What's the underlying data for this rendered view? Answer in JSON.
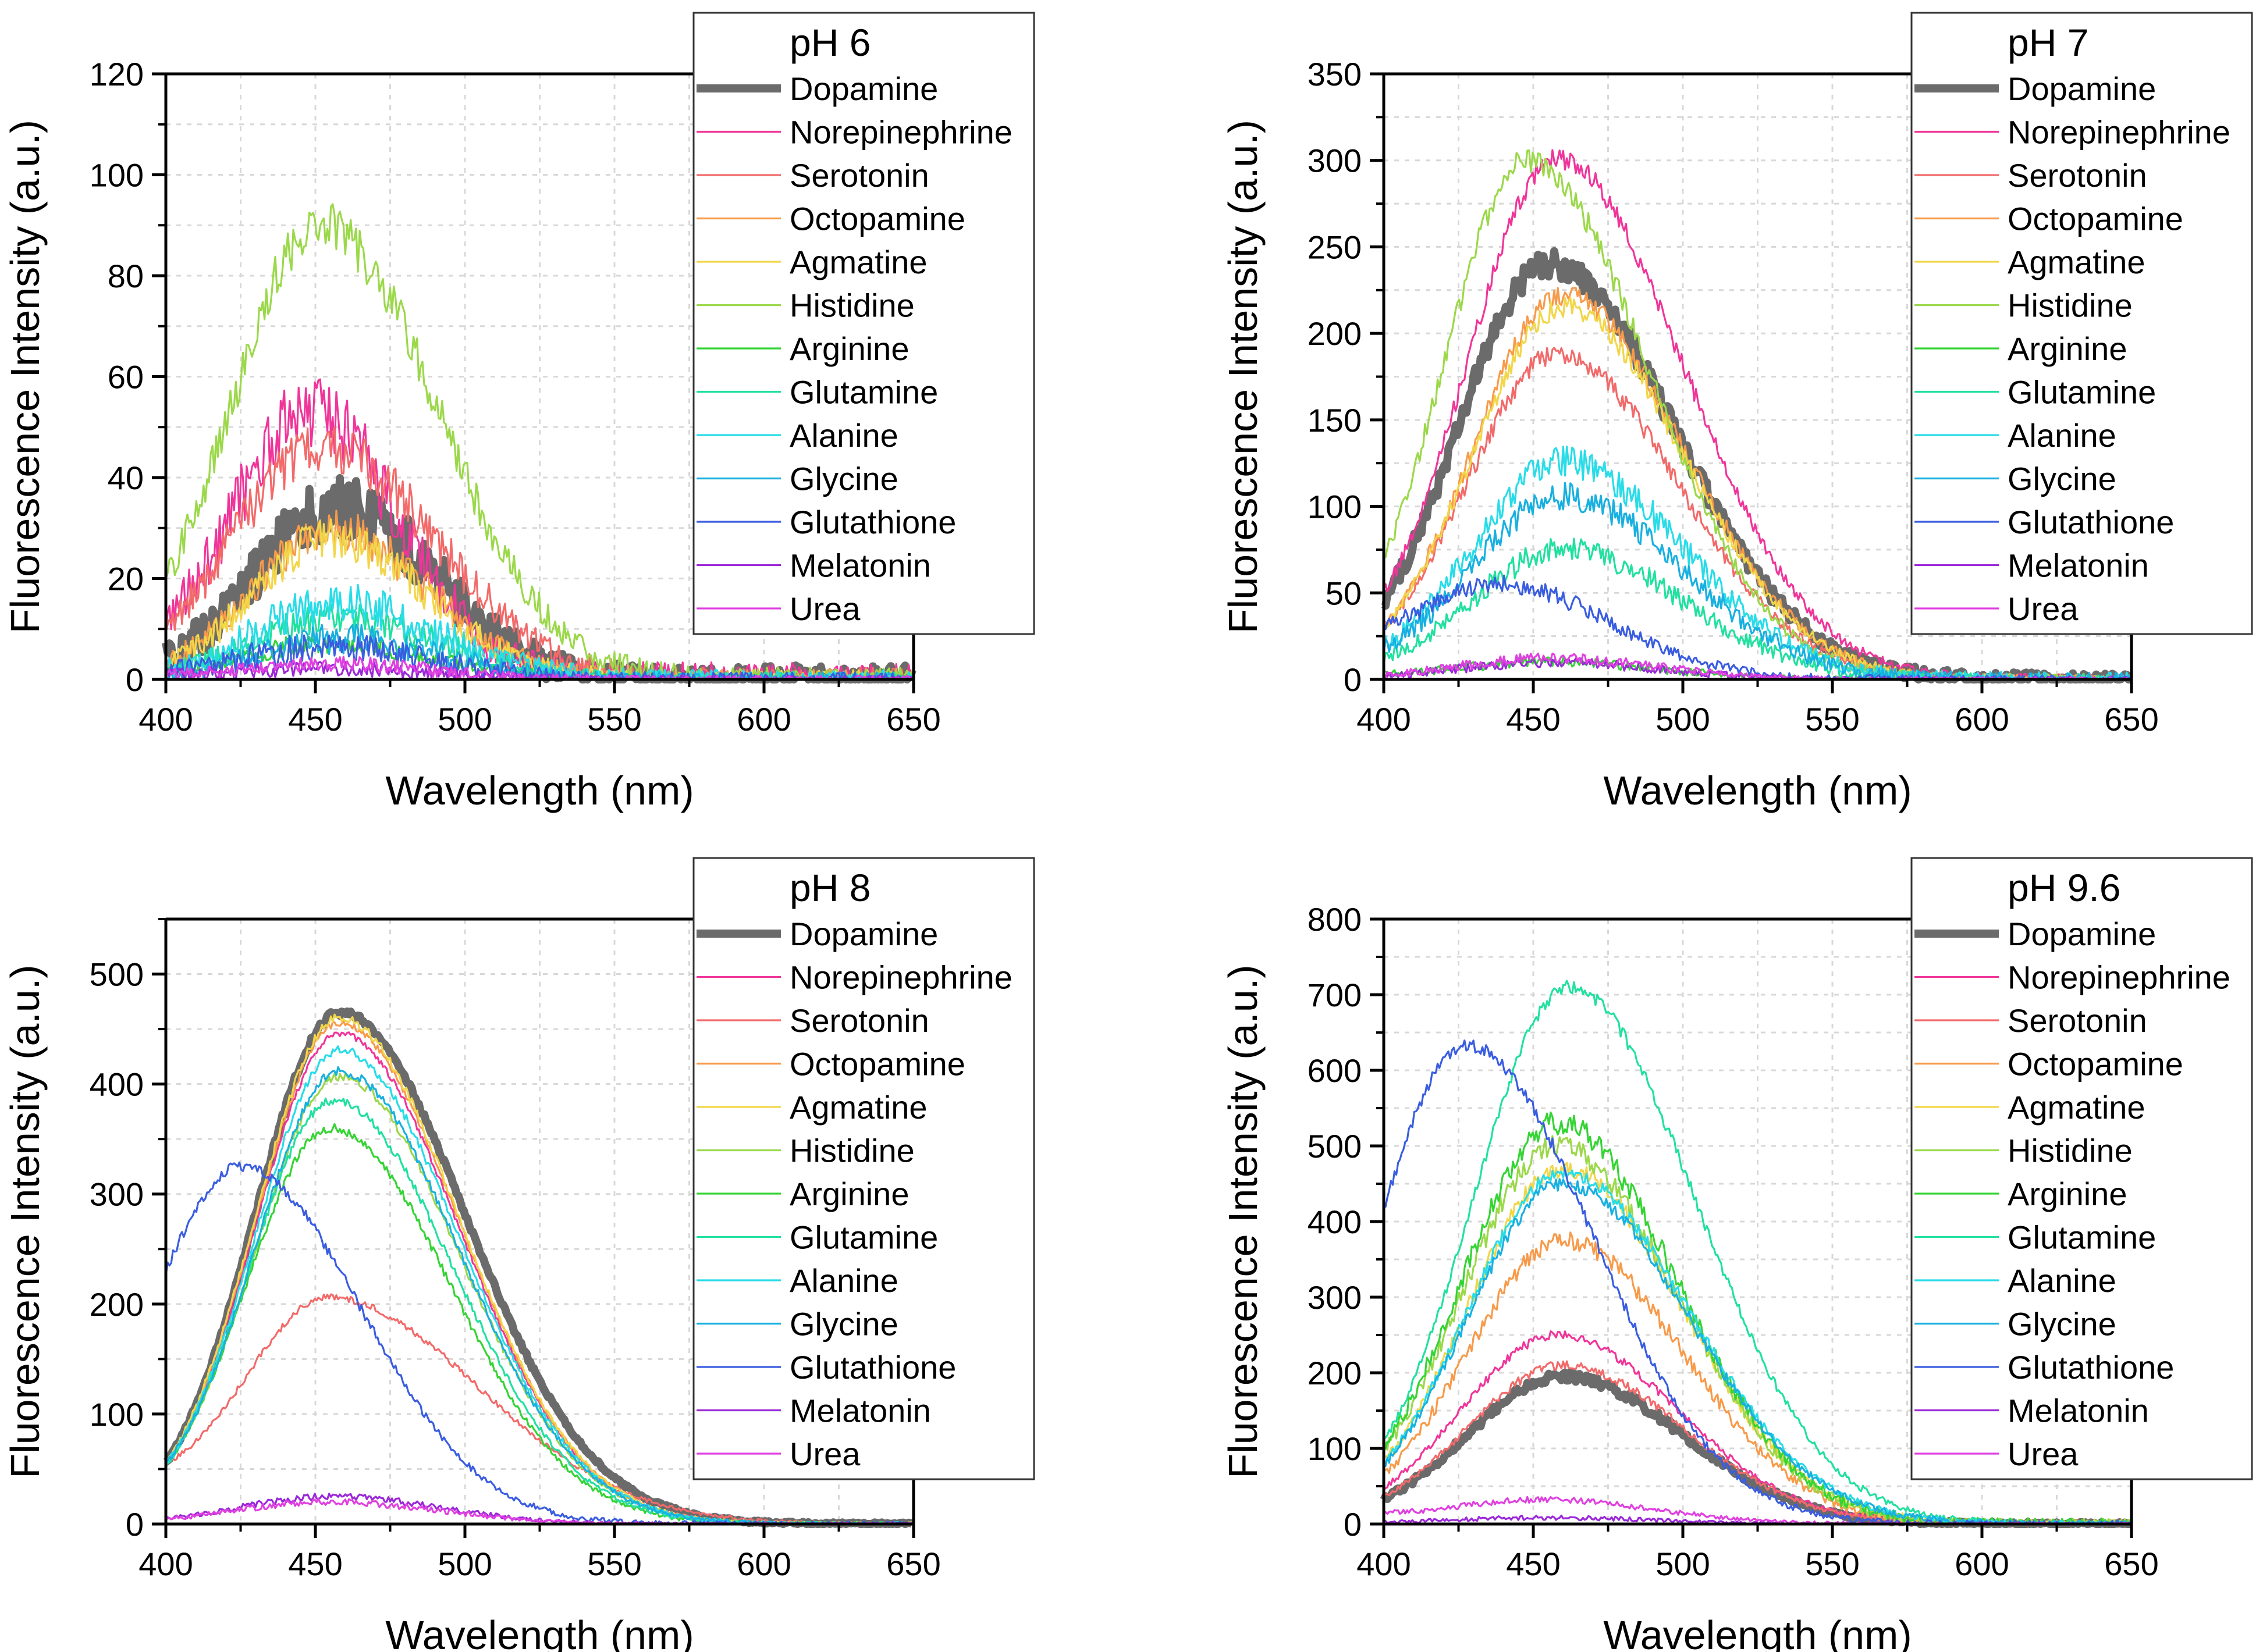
{
  "figure": {
    "xlabel": "Wavelength (nm)",
    "ylabel": "Fluorescence Intensity (a.u.)"
  },
  "legend_order": [
    "Dopamine",
    "Norepinephrine",
    "Serotonin",
    "Octopamine",
    "Agmatine",
    "Histidine",
    "Arginine",
    "Glutamine",
    "Alanine",
    "Glycine",
    "Glutathione",
    "Melatonin",
    "Urea"
  ],
  "colors": {
    "Dopamine": "#6b6b6b",
    "Norepinephrine": "#f0359a",
    "Serotonin": "#f26a6a",
    "Octopamine": "#f79a4a",
    "Agmatine": "#f2d64a",
    "Histidine": "#9bd84a",
    "Arginine": "#35d435",
    "Glutamine": "#22e0a0",
    "Alanine": "#28dce8",
    "Glycine": "#18b0e0",
    "Glutathione": "#3a5de0",
    "Melatonin": "#9a28d8",
    "Urea": "#e040e0"
  },
  "chart_data": [
    {
      "type": "line",
      "title": "pH 6",
      "xlabel": "Wavelength (nm)",
      "ylabel": "Fluorescence Intensity (a.u.)",
      "xlim": [
        400,
        650
      ],
      "ylim": [
        0,
        120
      ],
      "xticks": [
        400,
        450,
        500,
        550,
        600,
        650
      ],
      "yticks": [
        0,
        20,
        40,
        60,
        80,
        100,
        120
      ],
      "legend_position": "top-right",
      "grid": true,
      "series": [
        {
          "name": "Dopamine",
          "peak_x": 458,
          "peak_y": 34,
          "width_left": 28,
          "width_right": 32,
          "baseline_start": 4,
          "noise": 6
        },
        {
          "name": "Norepinephrine",
          "peak_x": 448,
          "peak_y": 52,
          "width_left": 25,
          "width_right": 30,
          "baseline_start": 12,
          "noise": 7
        },
        {
          "name": "Serotonin",
          "peak_x": 452,
          "peak_y": 46,
          "width_left": 30,
          "width_right": 38,
          "baseline_start": 8,
          "noise": 5
        },
        {
          "name": "Octopamine",
          "peak_x": 455,
          "peak_y": 30,
          "width_left": 26,
          "width_right": 32,
          "baseline_start": 3,
          "noise": 4
        },
        {
          "name": "Agmatine",
          "peak_x": 455,
          "peak_y": 28,
          "width_left": 26,
          "width_right": 32,
          "baseline_start": 3,
          "noise": 4
        },
        {
          "name": "Histidine",
          "peak_x": 452,
          "peak_y": 90,
          "width_left": 30,
          "width_right": 38,
          "baseline_start": 18,
          "noise": 5
        },
        {
          "name": "Arginine",
          "peak_x": 455,
          "peak_y": 7,
          "width_left": 28,
          "width_right": 34,
          "baseline_start": 2,
          "noise": 2
        },
        {
          "name": "Glutamine",
          "peak_x": 458,
          "peak_y": 12,
          "width_left": 28,
          "width_right": 34,
          "baseline_start": 2,
          "noise": 3
        },
        {
          "name": "Alanine",
          "peak_x": 458,
          "peak_y": 15,
          "width_left": 28,
          "width_right": 34,
          "baseline_start": 2,
          "noise": 4
        },
        {
          "name": "Glycine",
          "peak_x": 458,
          "peak_y": 8,
          "width_left": 28,
          "width_right": 34,
          "baseline_start": 1,
          "noise": 3
        },
        {
          "name": "Glutathione",
          "peak_x": 455,
          "peak_y": 6,
          "width_left": 28,
          "width_right": 34,
          "baseline_start": 2,
          "noise": 3
        },
        {
          "name": "Melatonin",
          "peak_x": 455,
          "peak_y": 2,
          "width_left": 30,
          "width_right": 34,
          "baseline_start": 1,
          "noise": 1.5
        },
        {
          "name": "Urea",
          "peak_x": 455,
          "peak_y": 3,
          "width_left": 30,
          "width_right": 34,
          "baseline_start": 1,
          "noise": 1.5
        }
      ]
    },
    {
      "type": "line",
      "title": "pH 7",
      "xlabel": "Wavelength (nm)",
      "ylabel": "Fluorescence Intensity (a.u.)",
      "xlim": [
        400,
        650
      ],
      "ylim": [
        0,
        350
      ],
      "xticks": [
        400,
        450,
        500,
        550,
        600,
        650
      ],
      "yticks": [
        0,
        50,
        100,
        150,
        200,
        250,
        300,
        350
      ],
      "legend_position": "top-right",
      "grid": true,
      "series": [
        {
          "name": "Dopamine",
          "peak_x": 455,
          "peak_y": 240,
          "width_left": 30,
          "width_right": 42,
          "baseline_start": 45,
          "noise": 8
        },
        {
          "name": "Norepinephrine",
          "peak_x": 458,
          "peak_y": 300,
          "width_left": 30,
          "width_right": 42,
          "baseline_start": 50,
          "noise": 6
        },
        {
          "name": "Serotonin",
          "peak_x": 458,
          "peak_y": 188,
          "width_left": 30,
          "width_right": 40,
          "baseline_start": 30,
          "noise": 6
        },
        {
          "name": "Octopamine",
          "peak_x": 460,
          "peak_y": 222,
          "width_left": 30,
          "width_right": 40,
          "baseline_start": 30,
          "noise": 6
        },
        {
          "name": "Agmatine",
          "peak_x": 460,
          "peak_y": 215,
          "width_left": 30,
          "width_right": 40,
          "baseline_start": 30,
          "noise": 6
        },
        {
          "name": "Histidine",
          "peak_x": 448,
          "peak_y": 300,
          "width_left": 28,
          "width_right": 40,
          "baseline_start": 60,
          "noise": 7
        },
        {
          "name": "Arginine",
          "peak_x": 455,
          "peak_y": 10,
          "width_left": 30,
          "width_right": 36,
          "baseline_start": 3,
          "noise": 3
        },
        {
          "name": "Glutamine",
          "peak_x": 460,
          "peak_y": 75,
          "width_left": 30,
          "width_right": 40,
          "baseline_start": 12,
          "noise": 7
        },
        {
          "name": "Alanine",
          "peak_x": 460,
          "peak_y": 125,
          "width_left": 30,
          "width_right": 40,
          "baseline_start": 20,
          "noise": 9
        },
        {
          "name": "Glycine",
          "peak_x": 460,
          "peak_y": 105,
          "width_left": 30,
          "width_right": 40,
          "baseline_start": 18,
          "noise": 8
        },
        {
          "name": "Glutathione",
          "peak_x": 440,
          "peak_y": 52,
          "width_left": 30,
          "width_right": 36,
          "baseline_start": 30,
          "noise": 5
        },
        {
          "name": "Melatonin",
          "peak_x": 455,
          "peak_y": 10,
          "width_left": 30,
          "width_right": 36,
          "baseline_start": 2,
          "noise": 3
        },
        {
          "name": "Urea",
          "peak_x": 455,
          "peak_y": 12,
          "width_left": 30,
          "width_right": 36,
          "baseline_start": 3,
          "noise": 3
        }
      ]
    },
    {
      "type": "line",
      "title": "pH 8",
      "xlabel": "Wavelength (nm)",
      "ylabel": "Fluorescence Intensity (a.u.)",
      "xlim": [
        400,
        650
      ],
      "ylim": [
        0,
        550
      ],
      "xticks": [
        400,
        450,
        500,
        550,
        600,
        650
      ],
      "yticks": [
        0,
        100,
        200,
        300,
        400,
        500
      ],
      "legend_position": "top-right",
      "grid": true,
      "series": [
        {
          "name": "Dopamine",
          "peak_x": 458,
          "peak_y": 465,
          "width_left": 28,
          "width_right": 42,
          "baseline_start": 55,
          "noise": 3
        },
        {
          "name": "Norepinephrine",
          "peak_x": 458,
          "peak_y": 445,
          "width_left": 28,
          "width_right": 40,
          "baseline_start": 55,
          "noise": 3
        },
        {
          "name": "Serotonin",
          "peak_x": 455,
          "peak_y": 200,
          "width_left": 28,
          "width_right": 50,
          "baseline_start": 55,
          "noise": 3
        },
        {
          "name": "Octopamine",
          "peak_x": 458,
          "peak_y": 455,
          "width_left": 28,
          "width_right": 40,
          "baseline_start": 55,
          "noise": 3
        },
        {
          "name": "Agmatine",
          "peak_x": 458,
          "peak_y": 460,
          "width_left": 28,
          "width_right": 40,
          "baseline_start": 55,
          "noise": 4
        },
        {
          "name": "Histidine",
          "peak_x": 458,
          "peak_y": 405,
          "width_left": 28,
          "width_right": 40,
          "baseline_start": 55,
          "noise": 4
        },
        {
          "name": "Arginine",
          "peak_x": 455,
          "peak_y": 360,
          "width_left": 28,
          "width_right": 40,
          "baseline_start": 50,
          "noise": 4
        },
        {
          "name": "Glutamine",
          "peak_x": 456,
          "peak_y": 385,
          "width_left": 28,
          "width_right": 40,
          "baseline_start": 50,
          "noise": 4
        },
        {
          "name": "Alanine",
          "peak_x": 458,
          "peak_y": 430,
          "width_left": 28,
          "width_right": 40,
          "baseline_start": 55,
          "noise": 4
        },
        {
          "name": "Glycine",
          "peak_x": 458,
          "peak_y": 410,
          "width_left": 28,
          "width_right": 40,
          "baseline_start": 55,
          "noise": 4
        },
        {
          "name": "Glutathione",
          "peak_x": 425,
          "peak_y": 325,
          "width_left": 30,
          "width_right": 40,
          "baseline_start": 210,
          "noise": 5
        },
        {
          "name": "Melatonin",
          "peak_x": 455,
          "peak_y": 25,
          "width_left": 30,
          "width_right": 36,
          "baseline_start": 5,
          "noise": 3
        },
        {
          "name": "Urea",
          "peak_x": 455,
          "peak_y": 20,
          "width_left": 30,
          "width_right": 36,
          "baseline_start": 5,
          "noise": 3
        }
      ]
    },
    {
      "type": "line",
      "title": "pH 9.6",
      "xlabel": "Wavelength (nm)",
      "ylabel": "Fluorescence Intensity (a.u.)",
      "xlim": [
        400,
        650
      ],
      "ylim": [
        0,
        800
      ],
      "xticks": [
        400,
        450,
        500,
        550,
        600,
        650
      ],
      "yticks": [
        0,
        100,
        200,
        300,
        400,
        500,
        600,
        700,
        800
      ],
      "legend_position": "top-right",
      "grid": true,
      "series": [
        {
          "name": "Dopamine",
          "peak_x": 460,
          "peak_y": 195,
          "width_left": 32,
          "width_right": 40,
          "baseline_start": 30,
          "noise": 6
        },
        {
          "name": "Norepinephrine",
          "peak_x": 458,
          "peak_y": 250,
          "width_left": 32,
          "width_right": 40,
          "baseline_start": 35,
          "noise": 6
        },
        {
          "name": "Serotonin",
          "peak_x": 460,
          "peak_y": 210,
          "width_left": 32,
          "width_right": 40,
          "baseline_start": 30,
          "noise": 6
        },
        {
          "name": "Octopamine",
          "peak_x": 460,
          "peak_y": 375,
          "width_left": 32,
          "width_right": 40,
          "baseline_start": 55,
          "noise": 12
        },
        {
          "name": "Agmatine",
          "peak_x": 460,
          "peak_y": 470,
          "width_left": 32,
          "width_right": 40,
          "baseline_start": 70,
          "noise": 12
        },
        {
          "name": "Histidine",
          "peak_x": 458,
          "peak_y": 500,
          "width_left": 32,
          "width_right": 40,
          "baseline_start": 70,
          "noise": 14
        },
        {
          "name": "Arginine",
          "peak_x": 458,
          "peak_y": 530,
          "width_left": 32,
          "width_right": 40,
          "baseline_start": 75,
          "noise": 16
        },
        {
          "name": "Glutamine",
          "peak_x": 462,
          "peak_y": 710,
          "width_left": 32,
          "width_right": 42,
          "baseline_start": 90,
          "noise": 9
        },
        {
          "name": "Alanine",
          "peak_x": 460,
          "peak_y": 465,
          "width_left": 32,
          "width_right": 42,
          "baseline_start": 70,
          "noise": 9
        },
        {
          "name": "Glycine",
          "peak_x": 460,
          "peak_y": 450,
          "width_left": 32,
          "width_right": 42,
          "baseline_start": 65,
          "noise": 9
        },
        {
          "name": "Glutathione",
          "peak_x": 428,
          "peak_y": 625,
          "width_left": 30,
          "width_right": 42,
          "baseline_start": 420,
          "noise": 9
        },
        {
          "name": "Melatonin",
          "peak_x": 455,
          "peak_y": 8,
          "width_left": 30,
          "width_right": 36,
          "baseline_start": 3,
          "noise": 3
        },
        {
          "name": "Urea",
          "peak_x": 455,
          "peak_y": 30,
          "width_left": 30,
          "width_right": 36,
          "baseline_start": 15,
          "noise": 4
        }
      ]
    }
  ]
}
